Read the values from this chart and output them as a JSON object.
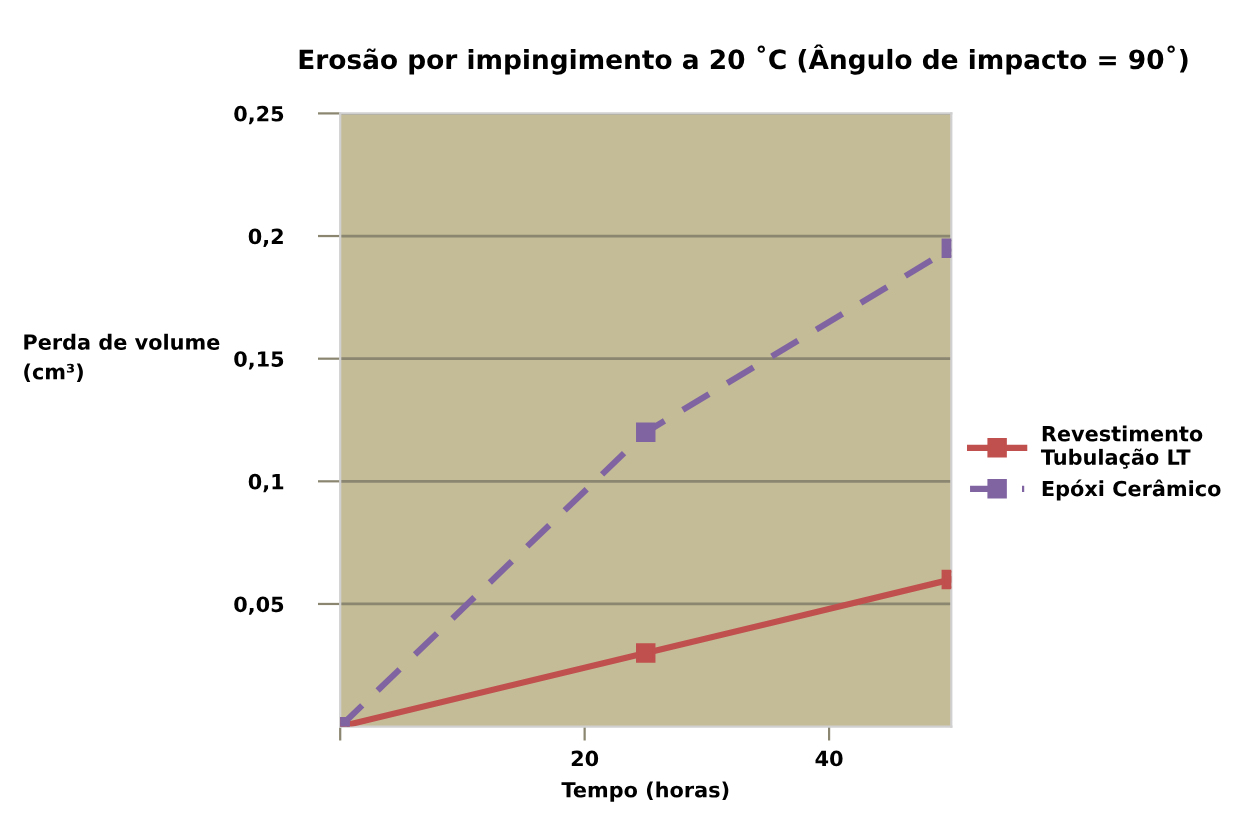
{
  "chart_data": {
    "type": "line",
    "title": "Erosão por impingimento a 20 ˚C (Ângulo de impacto = 90˚)",
    "xlabel": "Tempo (horas)",
    "ylabel": "Perda de volume\n(cm³)",
    "x": [
      0,
      25,
      50
    ],
    "series": [
      {
        "name": "Revestimento\nTubulação LT",
        "color": "#c0504d",
        "values": [
          0,
          0.03,
          0.06
        ],
        "line_style": "solid"
      },
      {
        "name": "Epóxi Cerâmico",
        "color": "#8064a2",
        "values": [
          0,
          0.12,
          0.195
        ],
        "line_style": "dashed"
      }
    ],
    "xlim": [
      0,
      50
    ],
    "xticks": [
      {
        "value": 0,
        "label": null
      },
      20,
      40
    ],
    "ylim": [
      0,
      0.25
    ],
    "yticks": [
      {
        "value": 0.05,
        "label": "0,05"
      },
      {
        "value": 0.1,
        "label": "0,1"
      },
      {
        "value": 0.15,
        "label": "0,15"
      },
      {
        "value": 0.2,
        "label": "0,2"
      },
      {
        "value": 0.25,
        "label": "0,25"
      }
    ],
    "grid": "y",
    "legend": "right",
    "marker": "square"
  }
}
